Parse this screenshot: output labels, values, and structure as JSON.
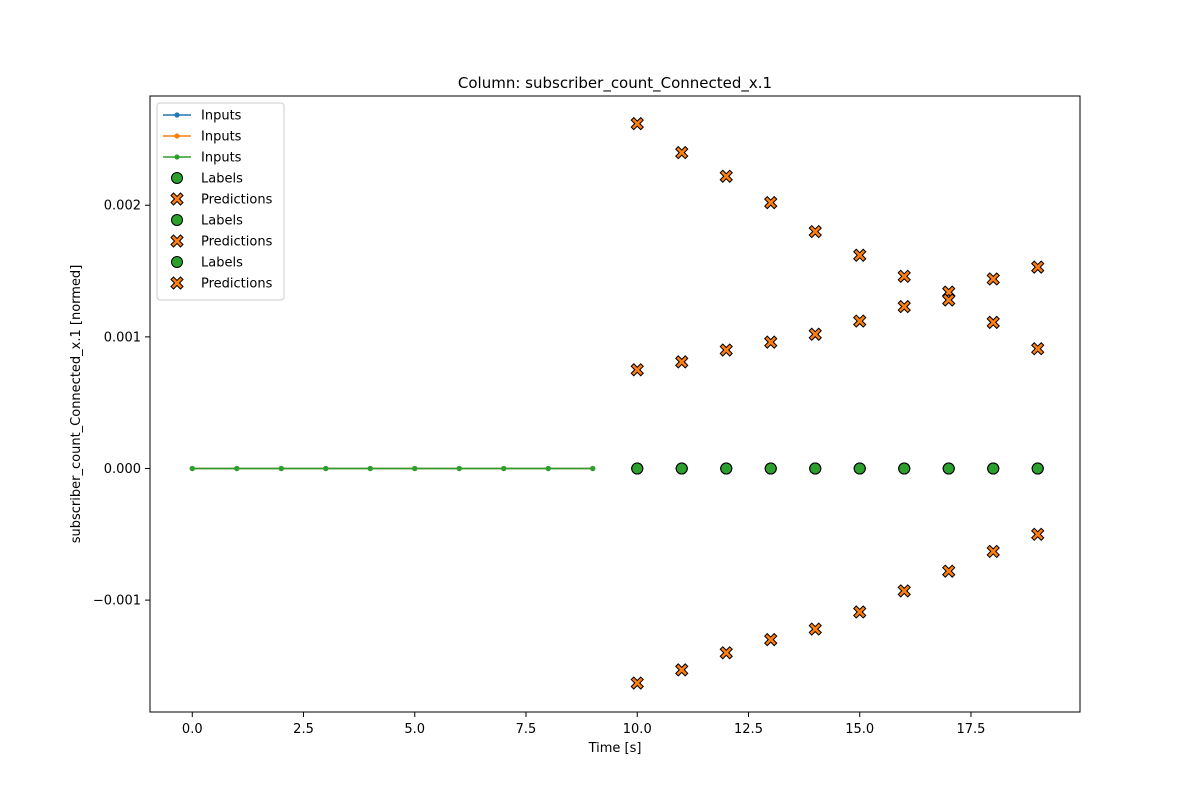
{
  "chart_data": {
    "type": "scatter",
    "title": "Column: subscriber_count_Connected_x.1",
    "xlabel": "Time [s]",
    "ylabel": "subscriber_count_Connected_x.1 [normed]",
    "xlim": [
      -0.95,
      19.95
    ],
    "ylim": [
      -0.00185,
      0.00283
    ],
    "x_ticks": [
      {
        "value": 0,
        "label": "0.0"
      },
      {
        "value": 2.5,
        "label": "2.5"
      },
      {
        "value": 5,
        "label": "5.0"
      },
      {
        "value": 7.5,
        "label": "7.5"
      },
      {
        "value": 10,
        "label": "10.0"
      },
      {
        "value": 12.5,
        "label": "12.5"
      },
      {
        "value": 15,
        "label": "15.0"
      },
      {
        "value": 17.5,
        "label": "17.5"
      }
    ],
    "y_ticks": [
      {
        "value": 0.002,
        "label": "0.002"
      },
      {
        "value": 0.001,
        "label": "0.001"
      },
      {
        "value": 0,
        "label": "0.000"
      },
      {
        "value": -0.001,
        "label": "−0.001"
      }
    ],
    "grid": false,
    "legend_position": "top-left",
    "series": [
      {
        "name": "Inputs",
        "kind": "line",
        "color": "#1f77b4",
        "x": [
          0,
          1,
          2,
          3,
          4,
          5,
          6,
          7,
          8,
          9
        ],
        "y": [
          0,
          0,
          0,
          0,
          0,
          0,
          0,
          0,
          0,
          0
        ]
      },
      {
        "name": "Inputs",
        "kind": "line",
        "color": "#ff7f0e",
        "x": [
          0,
          1,
          2,
          3,
          4,
          5,
          6,
          7,
          8,
          9
        ],
        "y": [
          0,
          0,
          0,
          0,
          0,
          0,
          0,
          0,
          0,
          0
        ]
      },
      {
        "name": "Inputs",
        "kind": "line",
        "color": "#2ca02c",
        "x": [
          0,
          1,
          2,
          3,
          4,
          5,
          6,
          7,
          8,
          9
        ],
        "y": [
          0,
          0,
          0,
          0,
          0,
          0,
          0,
          0,
          0,
          0
        ]
      },
      {
        "name": "Labels",
        "kind": "labels",
        "color": "#2ca02c",
        "x": [
          10,
          11,
          12,
          13,
          14,
          15,
          16,
          17,
          18,
          19
        ],
        "y": [
          0,
          0,
          0,
          0,
          0,
          0,
          0,
          0,
          0,
          0
        ]
      },
      {
        "name": "Predictions",
        "kind": "predictions",
        "color": "#ff7f0e",
        "x": [
          10,
          11,
          12,
          13,
          14,
          15,
          16,
          17,
          18,
          19
        ],
        "y": [
          0.00262,
          0.0024,
          0.00222,
          0.00202,
          0.0018,
          0.00162,
          0.00146,
          0.00134,
          0.00144,
          0.00153
        ]
      },
      {
        "name": "Labels",
        "kind": "labels",
        "color": "#2ca02c",
        "x": [
          10,
          11,
          12,
          13,
          14,
          15,
          16,
          17,
          18,
          19
        ],
        "y": [
          0,
          0,
          0,
          0,
          0,
          0,
          0,
          0,
          0,
          0
        ]
      },
      {
        "name": "Predictions",
        "kind": "predictions",
        "color": "#ff7f0e",
        "x": [
          10,
          11,
          12,
          13,
          14,
          15,
          16,
          17,
          18,
          19
        ],
        "y": [
          0.00075,
          0.00081,
          0.0009,
          0.00096,
          0.00102,
          0.00112,
          0.00123,
          0.00128,
          0.00111,
          0.00091
        ]
      },
      {
        "name": "Labels",
        "kind": "labels",
        "color": "#2ca02c",
        "x": [
          10,
          11,
          12,
          13,
          14,
          15,
          16,
          17,
          18,
          19
        ],
        "y": [
          0,
          0,
          0,
          0,
          0,
          0,
          0,
          0,
          0,
          0
        ]
      },
      {
        "name": "Predictions",
        "kind": "predictions",
        "color": "#ff7f0e",
        "x": [
          10,
          11,
          12,
          13,
          14,
          15,
          16,
          17,
          18,
          19
        ],
        "y": [
          -0.00163,
          -0.00153,
          -0.0014,
          -0.0013,
          -0.00122,
          -0.00109,
          -0.00093,
          -0.00078,
          -0.00063,
          -0.0005
        ]
      }
    ]
  }
}
